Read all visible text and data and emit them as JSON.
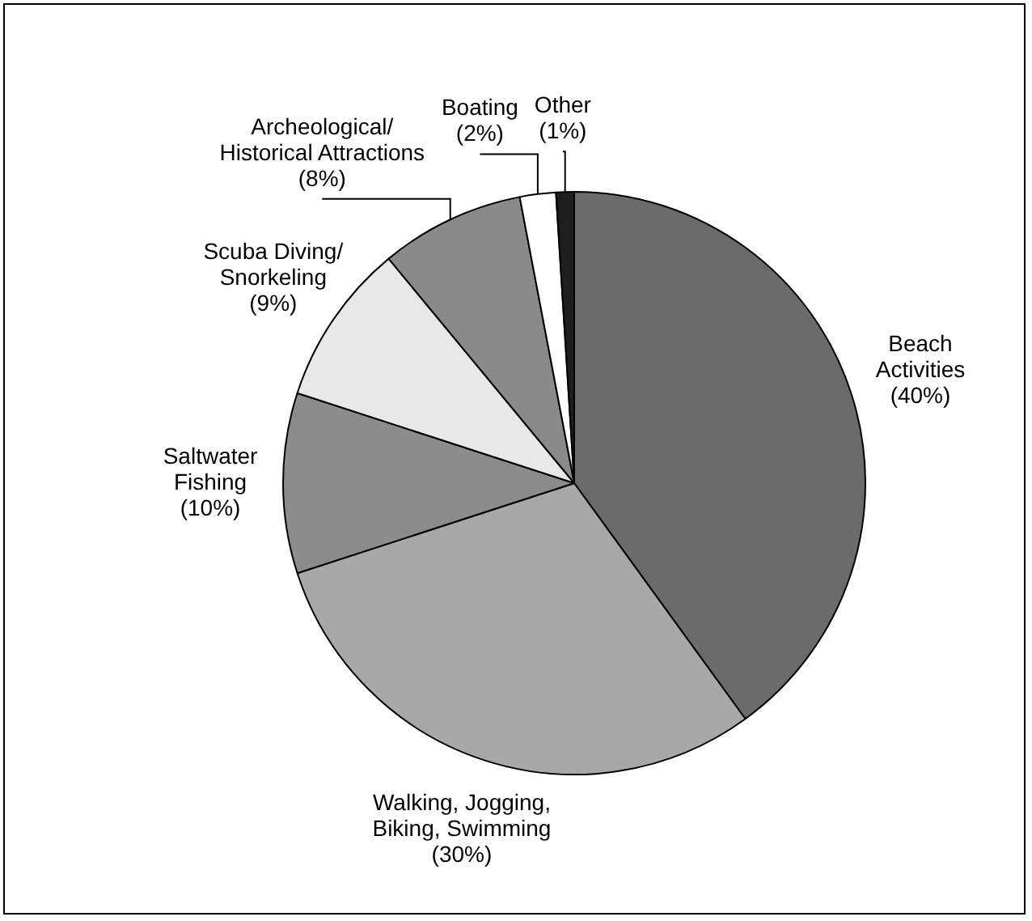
{
  "chart_data": {
    "type": "pie",
    "categories": [
      "Beach\nActivities",
      "Walking, Jogging,\nBiking, Swimming",
      "Saltwater\nFishing",
      "Scuba Diving/\nSnorkeling",
      "Archeological/\nHistorical Attractions",
      "Boating",
      "Other"
    ],
    "values": [
      40,
      30,
      10,
      9,
      8,
      2,
      1
    ],
    "value_labels": [
      "(40%)",
      "(30%)",
      "(10%)",
      "(9%)",
      "(8%)",
      "(2%)",
      "(1%)"
    ],
    "colors": [
      "#6b6b6b",
      "#a8a8a8",
      "#8c8c8c",
      "#e8e8e8",
      "#8a8a8a",
      "#ffffff",
      "#1e1e1e"
    ]
  }
}
